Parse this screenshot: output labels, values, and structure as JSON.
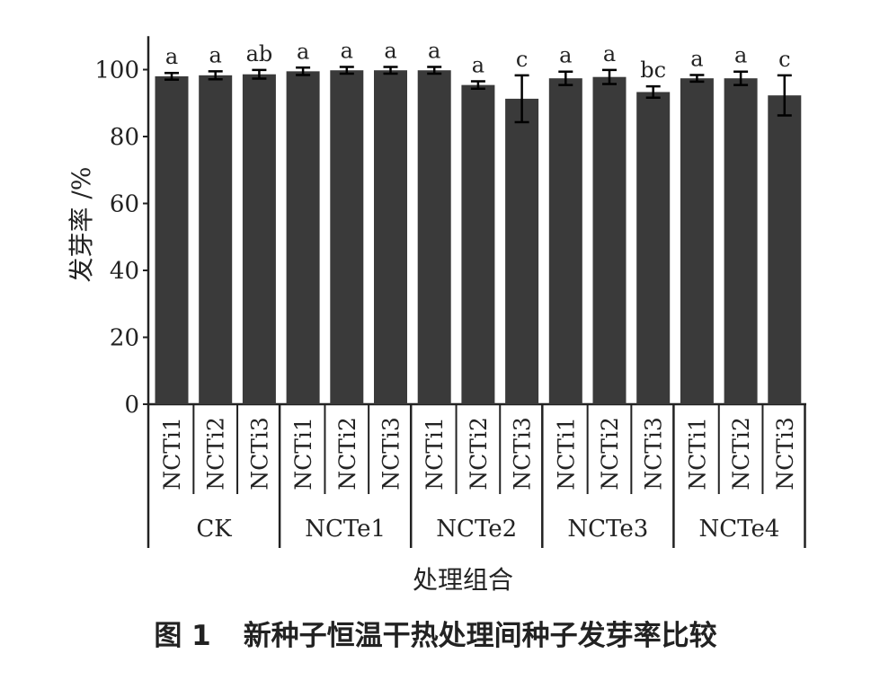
{
  "chart_data": {
    "type": "bar",
    "title": "",
    "xlabel": "处理组合",
    "ylabel": "发芽率 /%",
    "ylim": [
      0,
      110
    ],
    "yticks": [
      0,
      20,
      40,
      60,
      80,
      100
    ],
    "groups": [
      "CK",
      "NCTe1",
      "NCTe2",
      "NCTe3",
      "NCTe4"
    ],
    "categories": [
      "NCTi1",
      "NCTi2",
      "NCTi3",
      "NCTi1",
      "NCTi2",
      "NCTi3",
      "NCTi1",
      "NCTi2",
      "NCTi3",
      "NCTi1",
      "NCTi2",
      "NCTi3",
      "NCTi1",
      "NCTi2",
      "NCTi3"
    ],
    "values": [
      98.0,
      98.3,
      98.6,
      99.5,
      99.8,
      99.8,
      99.8,
      95.4,
      91.3,
      97.4,
      97.8,
      93.3,
      97.4,
      97.4,
      92.3
    ],
    "errors": [
      1.0,
      1.2,
      1.3,
      1.1,
      1.0,
      1.0,
      1.0,
      1.1,
      7.0,
      2.0,
      2.1,
      1.7,
      1.0,
      2.0,
      6.0
    ],
    "significance": [
      "a",
      "a",
      "ab",
      "a",
      "a",
      "a",
      "a",
      "a",
      "c",
      "a",
      "a",
      "bc",
      "a",
      "a",
      "c"
    ],
    "grid": false,
    "bar_color": "#3a3a3a"
  },
  "caption": {
    "number": "图 1",
    "text": "新种子恒温干热处理间种子发芽率比较"
  }
}
